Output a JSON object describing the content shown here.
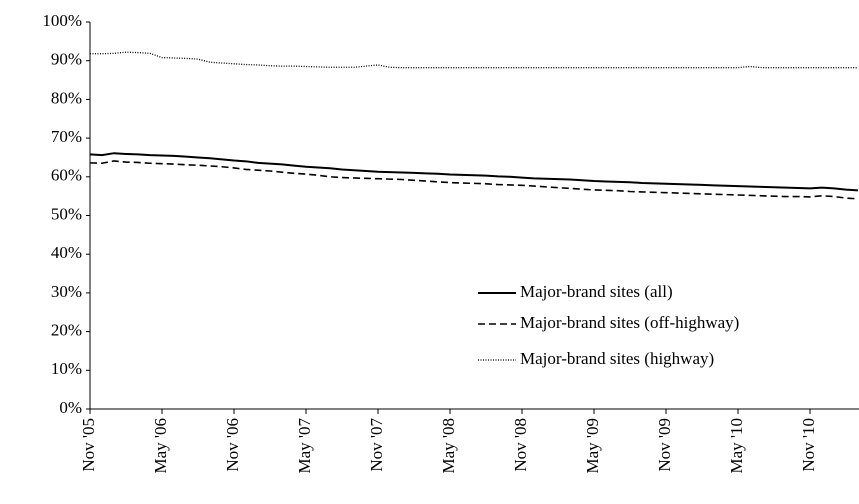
{
  "chart_data": {
    "type": "line",
    "categories": [
      "Nov '05",
      null,
      null,
      null,
      null,
      null,
      "May '06",
      null,
      null,
      null,
      null,
      null,
      "Nov '06",
      null,
      null,
      null,
      null,
      null,
      "May '07",
      null,
      null,
      null,
      null,
      null,
      "Nov '07",
      null,
      null,
      null,
      null,
      null,
      "May '08",
      null,
      null,
      null,
      null,
      null,
      "Nov '08",
      null,
      null,
      null,
      null,
      null,
      "May '09",
      null,
      null,
      null,
      null,
      null,
      "Nov '09",
      null,
      null,
      null,
      null,
      null,
      "May '10",
      null,
      null,
      null,
      null,
      null,
      "Nov '10",
      null,
      null,
      null,
      null
    ],
    "series": [
      {
        "name": "Major-brand sites (all)",
        "color": "#000000",
        "dash": "solid",
        "values": [
          65.8,
          65.6,
          66.1,
          65.9,
          65.8,
          65.6,
          65.5,
          65.4,
          65.2,
          65.0,
          64.8,
          64.5,
          64.2,
          64.0,
          63.6,
          63.4,
          63.2,
          62.9,
          62.6,
          62.4,
          62.2,
          61.9,
          61.7,
          61.5,
          61.3,
          61.2,
          61.1,
          61.0,
          60.9,
          60.8,
          60.6,
          60.5,
          60.4,
          60.3,
          60.1,
          60.0,
          59.8,
          59.6,
          59.5,
          59.4,
          59.3,
          59.1,
          58.9,
          58.8,
          58.7,
          58.6,
          58.4,
          58.3,
          58.2,
          58.1,
          58.0,
          57.9,
          57.8,
          57.7,
          57.6,
          57.5,
          57.4,
          57.3,
          57.2,
          57.1,
          57.0,
          57.2,
          57.0,
          56.7,
          56.5
        ]
      },
      {
        "name": "Major-brand sites (off-highway)",
        "color": "#000000",
        "dash": "dashed",
        "values": [
          63.6,
          63.5,
          64.1,
          63.8,
          63.7,
          63.5,
          63.4,
          63.3,
          63.1,
          63.0,
          62.8,
          62.6,
          62.3,
          61.9,
          61.7,
          61.5,
          61.2,
          60.9,
          60.7,
          60.4,
          60.0,
          59.8,
          59.7,
          59.6,
          59.5,
          59.4,
          59.3,
          59.1,
          58.9,
          58.7,
          58.5,
          58.4,
          58.3,
          58.2,
          58.0,
          57.9,
          57.8,
          57.6,
          57.4,
          57.2,
          57.0,
          56.8,
          56.6,
          56.5,
          56.4,
          56.2,
          56.1,
          56.0,
          55.9,
          55.8,
          55.7,
          55.6,
          55.5,
          55.4,
          55.3,
          55.2,
          55.1,
          55.0,
          54.9,
          54.9,
          54.8,
          55.1,
          54.9,
          54.5,
          54.3
        ]
      },
      {
        "name": "Major-brand sites (highway)",
        "color": "#000000",
        "dash": "dotted",
        "values": [
          91.8,
          91.8,
          91.9,
          92.2,
          92.1,
          91.9,
          90.8,
          90.7,
          90.6,
          90.4,
          89.6,
          89.4,
          89.2,
          89.0,
          88.9,
          88.7,
          88.6,
          88.6,
          88.5,
          88.4,
          88.3,
          88.3,
          88.3,
          88.6,
          88.9,
          88.3,
          88.2,
          88.2,
          88.2,
          88.2,
          88.2,
          88.2,
          88.2,
          88.2,
          88.2,
          88.2,
          88.2,
          88.2,
          88.2,
          88.2,
          88.2,
          88.2,
          88.2,
          88.2,
          88.2,
          88.2,
          88.2,
          88.2,
          88.2,
          88.2,
          88.2,
          88.2,
          88.2,
          88.2,
          88.2,
          88.5,
          88.2,
          88.2,
          88.2,
          88.2,
          88.2,
          88.2,
          88.2,
          88.2,
          88.2
        ]
      }
    ],
    "ylim": [
      0,
      100
    ],
    "yticks": [
      {
        "value": 0,
        "label": "0%"
      },
      {
        "value": 10,
        "label": "10%"
      },
      {
        "value": 20,
        "label": "20%"
      },
      {
        "value": 30,
        "label": "30%"
      },
      {
        "value": 40,
        "label": "40%"
      },
      {
        "value": 50,
        "label": "50%"
      },
      {
        "value": 60,
        "label": "60%"
      },
      {
        "value": 70,
        "label": "70%"
      },
      {
        "value": 80,
        "label": "80%"
      },
      {
        "value": 90,
        "label": "90%"
      },
      {
        "value": 100,
        "label": "100%"
      }
    ],
    "grid": false,
    "legend": "lower right"
  }
}
